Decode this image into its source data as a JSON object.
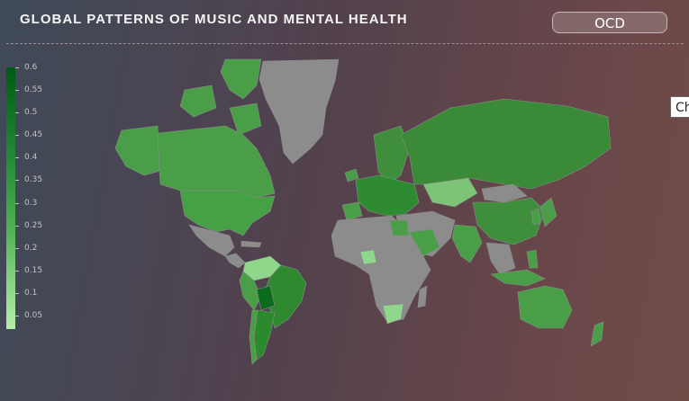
{
  "header": {
    "title": "GLOBAL PATTERNS OF MUSIC AND MENTAL HEALTH",
    "dropdown_selected": "OCD"
  },
  "tooltip": {
    "text": "Ch"
  },
  "colorbar": {
    "ticks": [
      "0.6",
      "0.55",
      "0.5",
      "0.45",
      "0.4",
      "0.35",
      "0.3",
      "0.25",
      "0.2",
      "0.15",
      "0.1",
      "0.05"
    ],
    "range": [
      0.02,
      0.6
    ],
    "color_low": "#b6efa9",
    "color_high": "#005a14"
  },
  "colors": {
    "no_data": "#8c8c8c",
    "accent": "#3e8e3b"
  }
}
